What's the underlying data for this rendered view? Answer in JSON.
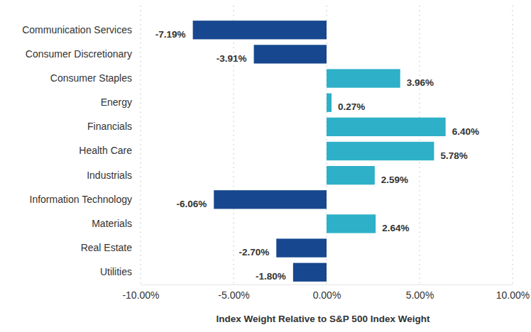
{
  "chart_data": {
    "type": "bar",
    "orientation": "horizontal",
    "categories": [
      "Communication Services",
      "Consumer Discretionary",
      "Consumer Staples",
      "Energy",
      "Financials",
      "Health Care",
      "Industrials",
      "Information Technology",
      "Materials",
      "Real Estate",
      "Utilities"
    ],
    "values": [
      -7.19,
      -3.91,
      3.96,
      0.27,
      6.4,
      5.78,
      2.59,
      -6.06,
      2.64,
      -2.7,
      -1.8
    ],
    "value_labels": [
      "-7.19%",
      "-3.91%",
      "3.96%",
      "0.27%",
      "6.40%",
      "5.78%",
      "2.59%",
      "-6.06%",
      "2.64%",
      "-2.70%",
      "-1.80%"
    ],
    "colors": [
      "#17488f",
      "#17488f",
      "#2eb0c8",
      "#2eb0c8",
      "#2eb0c8",
      "#2eb0c8",
      "#2eb0c8",
      "#17488f",
      "#2eb0c8",
      "#17488f",
      "#17488f"
    ],
    "xlabel": "Index Weight Relative to S&P 500 Index Weight",
    "xlim": [
      -10,
      10
    ],
    "xticks": [
      {
        "value": -10,
        "label": "-10.00%"
      },
      {
        "value": -5,
        "label": "-5.00%"
      },
      {
        "value": 0,
        "label": "0.00%"
      },
      {
        "value": 5,
        "label": "5.00%"
      },
      {
        "value": 10,
        "label": "10.00%"
      }
    ],
    "grid": true,
    "data_labels": true
  }
}
